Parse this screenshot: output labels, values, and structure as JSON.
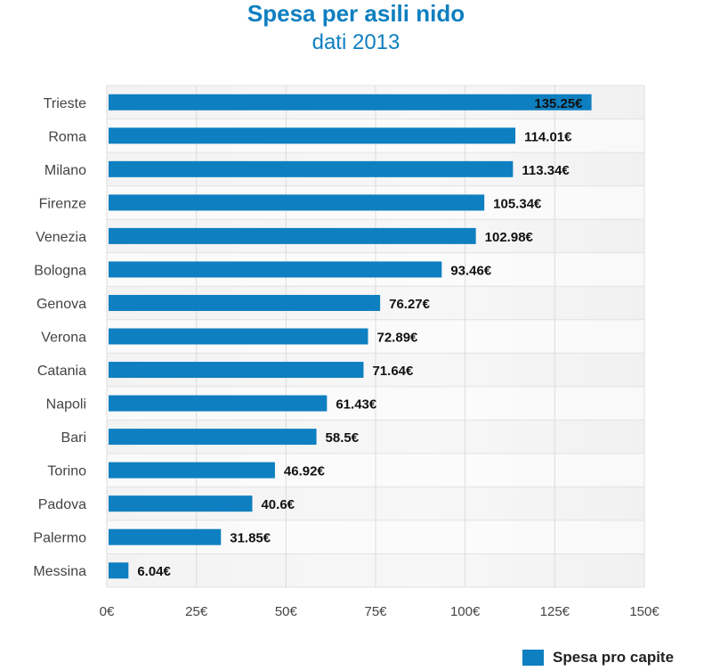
{
  "chart_data": {
    "type": "bar",
    "orientation": "horizontal",
    "title": "Spesa per asili nido",
    "subtitle": "dati 2013",
    "categories": [
      "Trieste",
      "Roma",
      "Milano",
      "Firenze",
      "Venezia",
      "Bologna",
      "Genova",
      "Verona",
      "Catania",
      "Napoli",
      "Bari",
      "Torino",
      "Padova",
      "Palermo",
      "Messina"
    ],
    "series": [
      {
        "name": "Spesa pro capite",
        "values": [
          135.25,
          114.01,
          113.34,
          105.34,
          102.98,
          93.46,
          76.27,
          72.89,
          71.64,
          61.43,
          58.5,
          46.92,
          40.6,
          31.85,
          6.04
        ],
        "labels": [
          "135.25€",
          "114.01€",
          "113.34€",
          "105.34€",
          "102.98€",
          "93.46€",
          "76.27€",
          "72.89€",
          "71.64€",
          "61.43€",
          "58.5€",
          "46.92€",
          "40.6€",
          "31.85€",
          "6.04€"
        ]
      }
    ],
    "xlim": [
      0,
      150
    ],
    "xticks": [
      0,
      25,
      50,
      75,
      100,
      125,
      150
    ],
    "xtick_labels": [
      "0€",
      "25€",
      "50€",
      "75€",
      "100€",
      "125€",
      "150€"
    ],
    "grid": true,
    "legend_position": "bottom-right",
    "colors": {
      "bar": "#0e7fc0",
      "title": "#0e7fc0"
    }
  }
}
